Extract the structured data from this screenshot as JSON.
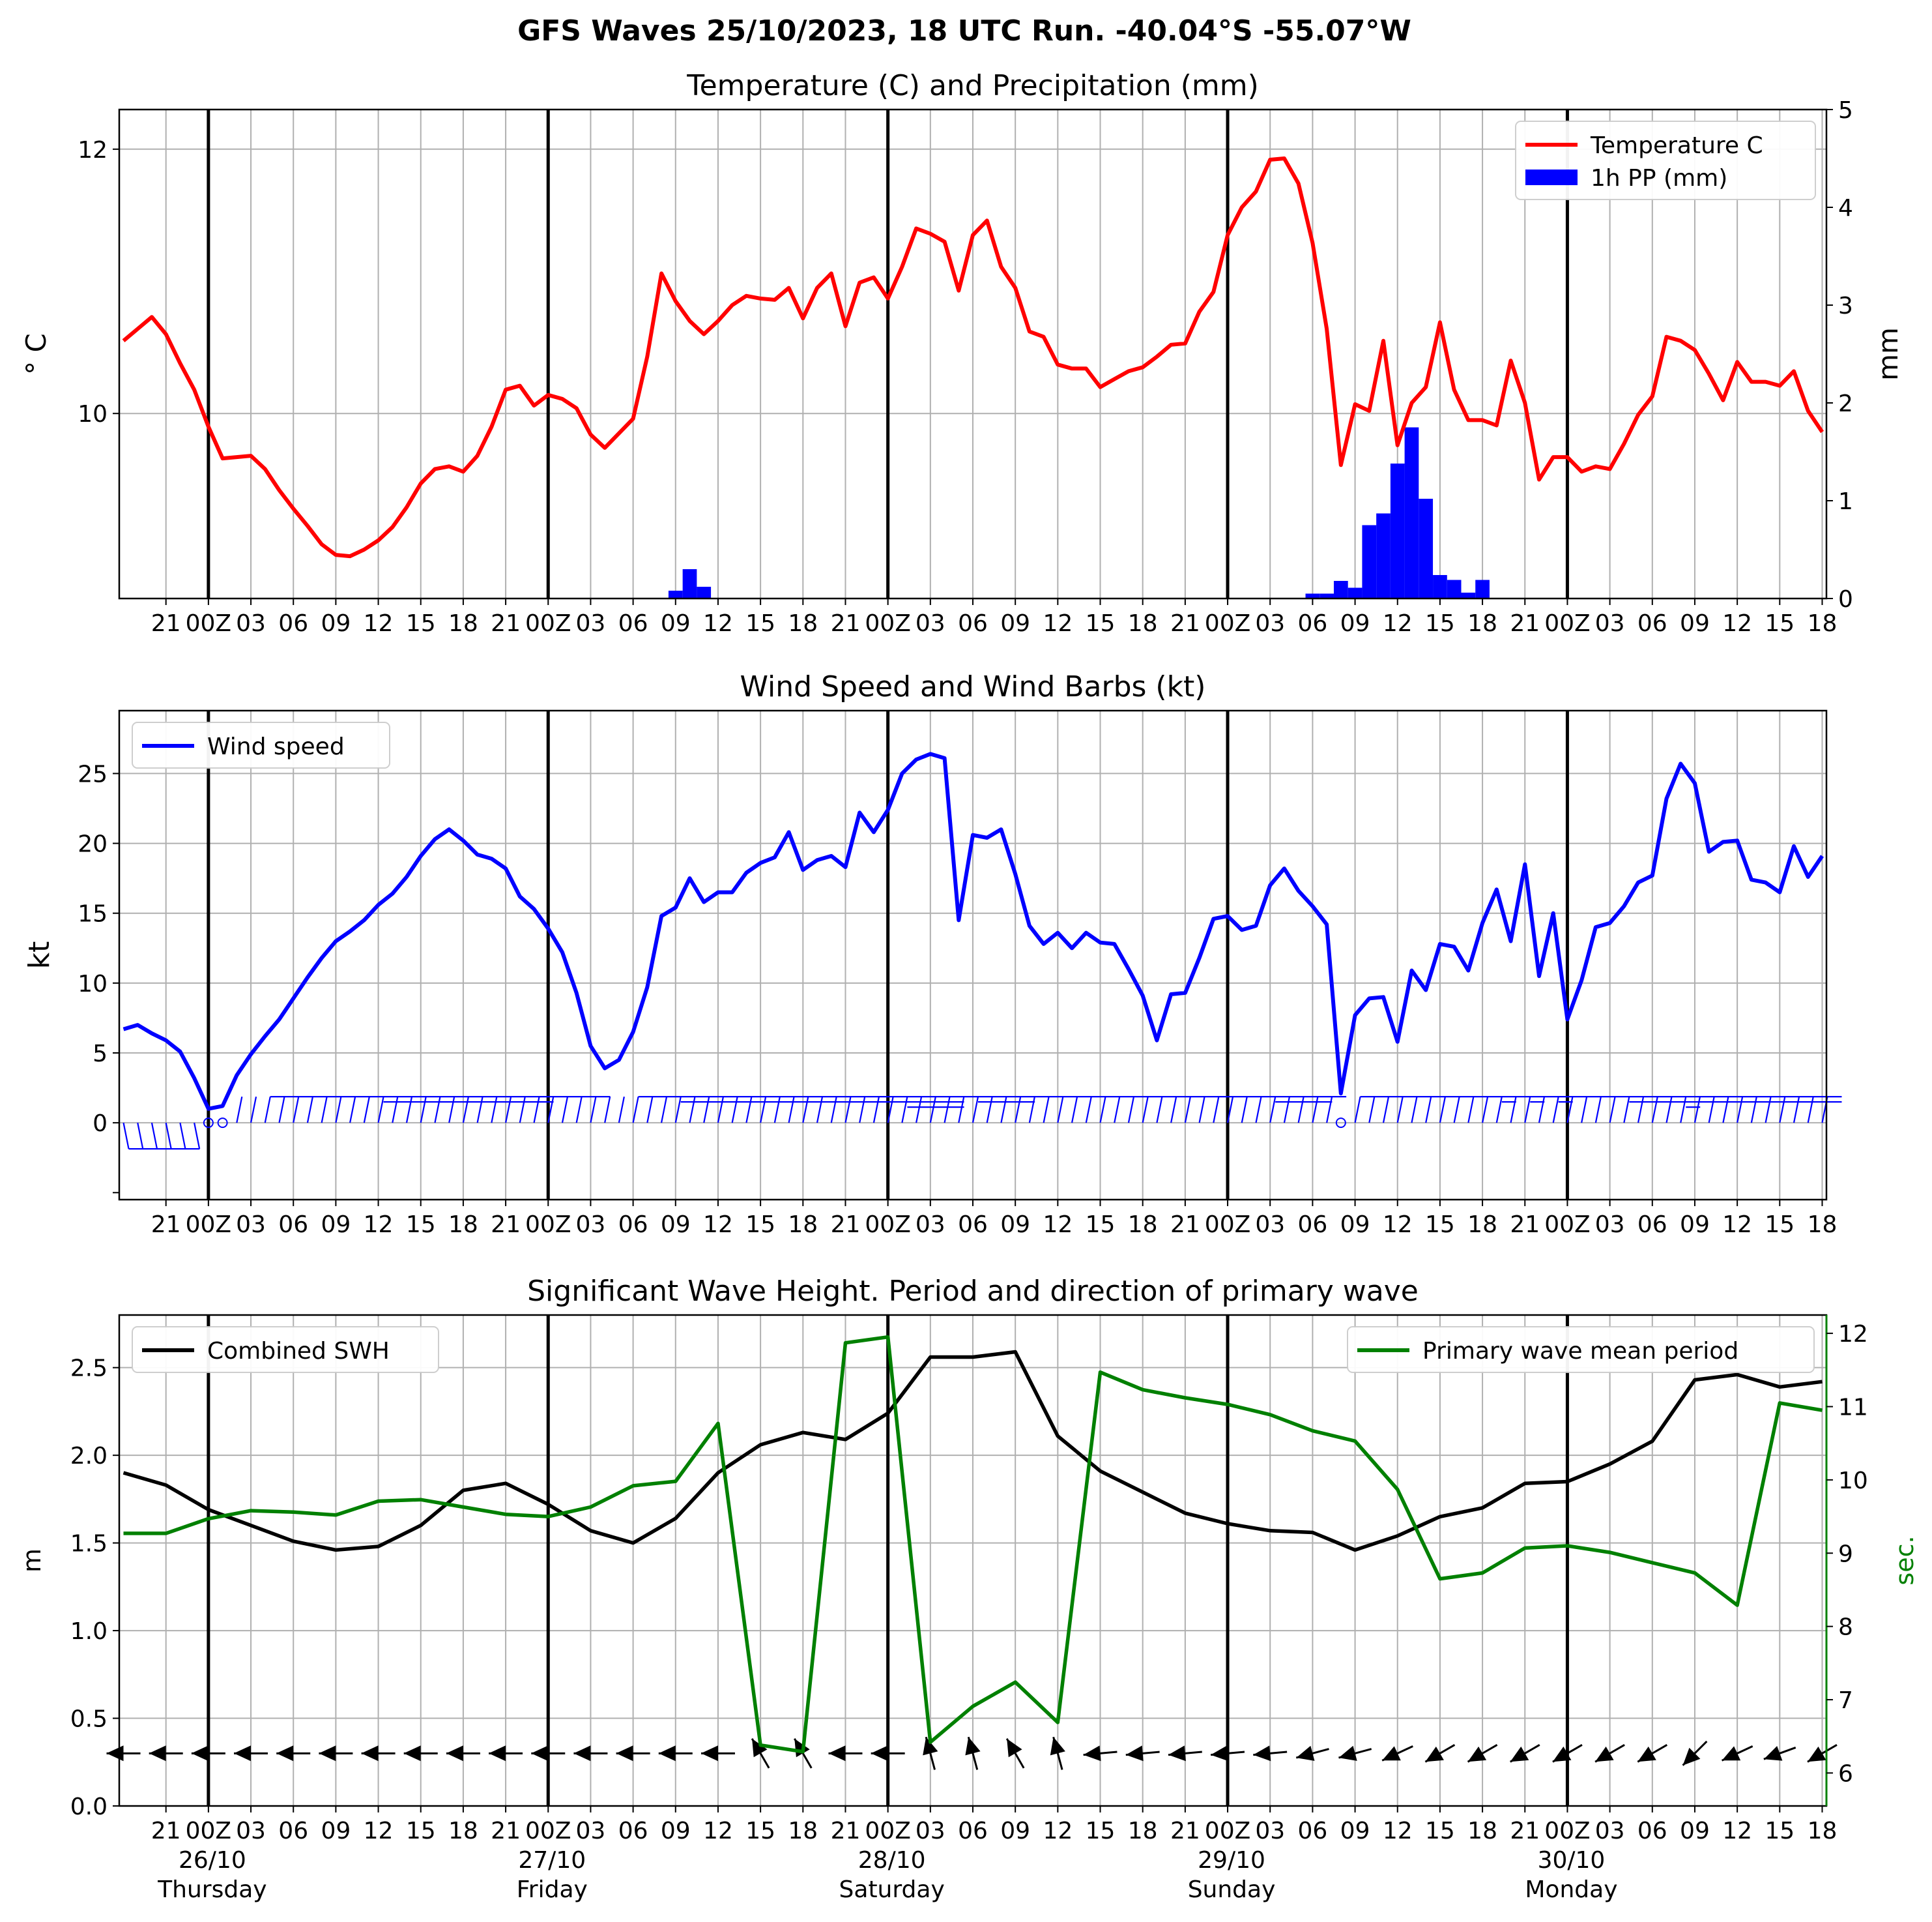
{
  "suptitle": "GFS Waves 25/10/2023, 18 UTC Run. -40.04°S -55.07°W",
  "x_ticks": [
    "21",
    "00Z",
    "03",
    "06",
    "09",
    "12",
    "15",
    "18",
    "21",
    "00Z",
    "03",
    "06",
    "09",
    "12",
    "15",
    "18",
    "21",
    "00Z",
    "03",
    "06",
    "09",
    "12",
    "15",
    "18",
    "21",
    "00Z",
    "03",
    "06",
    "09",
    "12",
    "15",
    "18",
    "21",
    "00Z",
    "03",
    "06",
    "09",
    "12",
    "15",
    "18"
  ],
  "day_labels": [
    {
      "date": "26/10",
      "day": "Thursday"
    },
    {
      "date": "27/10",
      "day": "Friday"
    },
    {
      "date": "28/10",
      "day": "Saturday"
    },
    {
      "date": "29/10",
      "day": "Sunday"
    },
    {
      "date": "30/10",
      "day": "Monday"
    }
  ],
  "colors": {
    "temperature": "#ff0000",
    "precip": "#0000ff",
    "wind": "#0000ff",
    "swh": "#000000",
    "period": "#008000",
    "grid": "#b0b0b0"
  },
  "chart_data": [
    {
      "type": "line",
      "title": "Temperature (C) and Precipitation (mm)",
      "ylabel": "$^\\circ$C",
      "ylabel_display": "° C",
      "y2label": "mm",
      "x_unit": "hours from 25/10 18 UTC",
      "ylim": [
        8.6,
        12.3
      ],
      "y2lim": [
        0,
        5
      ],
      "yticks": [
        10,
        12
      ],
      "y2ticks": [
        0,
        1,
        2,
        3,
        4,
        5
      ],
      "legend_position": "top-right",
      "series": [
        {
          "name": "Temperature C",
          "axis": "left",
          "x": [
            0,
            1,
            2,
            3,
            4,
            5,
            6,
            7,
            8,
            9,
            10,
            11,
            12,
            13,
            14,
            15,
            16,
            17,
            18,
            19,
            20,
            21,
            22,
            23,
            24,
            25,
            26,
            27,
            28,
            29,
            30,
            31,
            32,
            33,
            34,
            35,
            36,
            37,
            38,
            39,
            40,
            41,
            42,
            43,
            44,
            45,
            46,
            47,
            48,
            49,
            50,
            51,
            52,
            53,
            54,
            55,
            56,
            57,
            58,
            59,
            60,
            61,
            62,
            63,
            64,
            65,
            66,
            67,
            68,
            69,
            70,
            71,
            72,
            73,
            74,
            75,
            76,
            77,
            78,
            79,
            80,
            81,
            82,
            83,
            84,
            85,
            86,
            87,
            88,
            89,
            90,
            91,
            92,
            93,
            94,
            95,
            96,
            97,
            98,
            99,
            100,
            101,
            102,
            103,
            104,
            105,
            106,
            107,
            108,
            109,
            110,
            111,
            112,
            113,
            114,
            115,
            116,
            117,
            118,
            119,
            120
          ],
          "values": [
            10.55,
            10.64,
            10.73,
            10.6,
            10.38,
            10.18,
            9.9,
            9.66,
            9.67,
            9.68,
            9.58,
            9.42,
            9.28,
            9.15,
            9.01,
            8.93,
            8.92,
            8.97,
            9.04,
            9.14,
            9.29,
            9.47,
            9.58,
            9.6,
            9.56,
            9.68,
            9.9,
            10.18,
            10.21,
            10.06,
            10.14,
            10.11,
            10.04,
            9.84,
            9.74,
            9.85,
            9.96,
            10.43,
            11.06,
            10.85,
            10.7,
            10.6,
            10.7,
            10.82,
            10.89,
            10.87,
            10.86,
            10.95,
            10.72,
            10.95,
            11.06,
            10.66,
            10.99,
            11.03,
            10.87,
            11.11,
            11.4,
            11.36,
            11.3,
            10.93,
            11.35,
            11.46,
            11.11,
            10.95,
            10.62,
            10.58,
            10.37,
            10.34,
            10.34,
            10.2,
            10.26,
            10.32,
            10.35,
            10.43,
            10.52,
            10.53,
            10.77,
            10.92,
            11.35,
            11.56,
            11.68,
            11.92,
            11.93,
            11.74,
            11.29,
            10.64,
            9.61,
            10.07,
            10.02,
            10.55,
            9.76,
            10.08,
            10.2,
            10.69,
            10.18,
            9.95,
            9.95,
            9.91,
            10.4,
            10.08,
            9.5,
            9.67,
            9.67,
            9.56,
            9.6,
            9.58,
            9.77,
            9.99,
            10.13,
            10.58,
            10.55,
            10.48,
            10.3,
            10.1,
            10.39,
            10.24,
            10.24,
            10.21,
            10.32,
            10.02,
            9.86
          ]
        },
        {
          "name": "1h PP (mm)",
          "axis": "right",
          "kind": "bar",
          "x": [
            39,
            40,
            41,
            84,
            85,
            86,
            87,
            88,
            89,
            90,
            91,
            92,
            93,
            94,
            95,
            96,
            97,
            98
          ],
          "values": [
            0.08,
            0.3,
            0.12,
            0.05,
            0.05,
            0.18,
            0.11,
            0.75,
            0.87,
            1.38,
            1.75,
            1.02,
            0.24,
            0.19,
            0.06,
            0.19,
            0,
            0
          ]
        }
      ],
      "x_spacing_note": "hourly",
      "x_ticks_shared": true
    },
    {
      "type": "line",
      "title": "Wind Speed and Wind Barbs (kt)",
      "ylabel": "kt",
      "ylim": [
        -5.5,
        29.5
      ],
      "yticks": [
        0,
        5,
        10,
        15,
        20,
        25
      ],
      "legend_position": "top-left",
      "series": [
        {
          "name": "Wind speed",
          "x": [
            0,
            1,
            2,
            3,
            4,
            5,
            6,
            7,
            8,
            9,
            10,
            11,
            12,
            13,
            14,
            15,
            16,
            17,
            18,
            19,
            20,
            21,
            22,
            23,
            24,
            25,
            26,
            27,
            28,
            29,
            30,
            31,
            32,
            33,
            34,
            35,
            36,
            37,
            38,
            39,
            40,
            41,
            42,
            43,
            44,
            45,
            46,
            47,
            48,
            49,
            50,
            51,
            52,
            53,
            54,
            55,
            56,
            57,
            58,
            59,
            60,
            61,
            62,
            63,
            64,
            65,
            66,
            67,
            68,
            69,
            70,
            71,
            72,
            73,
            74,
            75,
            76,
            77,
            78,
            79,
            80,
            81,
            82,
            83,
            84,
            85,
            86,
            87,
            88,
            89,
            90,
            91,
            92,
            93,
            94,
            95,
            96,
            97,
            98,
            99,
            100,
            101,
            102,
            103,
            104,
            105,
            106,
            107,
            108,
            109,
            110,
            111,
            112,
            113,
            114,
            115,
            116,
            117,
            118,
            119,
            120
          ],
          "values": [
            6.7,
            7.0,
            6.4,
            5.9,
            5.1,
            3.2,
            1.0,
            1.2,
            3.4,
            4.9,
            6.2,
            7.4,
            8.9,
            10.4,
            11.8,
            13.0,
            13.7,
            14.5,
            15.6,
            16.4,
            17.6,
            19.1,
            20.3,
            21.0,
            20.2,
            19.2,
            18.9,
            18.2,
            16.2,
            15.3,
            13.9,
            12.2,
            9.3,
            5.5,
            3.9,
            4.5,
            6.5,
            9.7,
            14.8,
            15.4,
            17.5,
            15.8,
            16.5,
            16.5,
            17.9,
            18.6,
            19.0,
            20.8,
            18.1,
            18.8,
            19.1,
            18.3,
            22.2,
            20.8,
            22.4,
            25.0,
            26.0,
            26.4,
            26.1,
            14.5,
            20.6,
            20.4,
            21.0,
            17.8,
            14.1,
            12.8,
            13.6,
            12.5,
            13.6,
            12.9,
            12.8,
            11.0,
            9.1,
            5.9,
            9.2,
            9.3,
            11.8,
            14.6,
            14.8,
            13.8,
            14.1,
            17.0,
            18.2,
            16.6,
            15.5,
            14.2,
            2.1,
            7.7,
            8.9,
            9.0,
            5.8,
            10.9,
            9.5,
            12.8,
            12.6,
            10.9,
            14.3,
            16.7,
            13.0,
            18.5,
            10.5,
            15.0,
            7.4,
            10.2,
            14.0,
            14.3,
            15.5,
            17.2,
            17.7,
            23.2,
            25.7,
            24.3,
            19.4,
            20.1,
            20.2,
            17.4,
            17.2,
            16.5,
            19.8,
            17.6,
            19.1
          ]
        }
      ]
    },
    {
      "type": "line",
      "title": "Significant Wave Height. Period and direction of primary wave",
      "ylabel": "m",
      "y2label": "sec.",
      "ylim": [
        0,
        2.8
      ],
      "y2lim": [
        5.55,
        12.25
      ],
      "yticks": [
        0.0,
        0.5,
        1.0,
        1.5,
        2.0,
        2.5
      ],
      "y2ticks": [
        6,
        7,
        8,
        9,
        10,
        11,
        12
      ],
      "legend_positions": [
        "top-left",
        "top-right"
      ],
      "series": [
        {
          "name": "Combined SWH",
          "axis": "left",
          "x": [
            0,
            3,
            6,
            9,
            12,
            15,
            18,
            21,
            24,
            27,
            30,
            33,
            36,
            39,
            42,
            45,
            48,
            51,
            54,
            57,
            60,
            63,
            66,
            69,
            72,
            75,
            78,
            81,
            84,
            87,
            90,
            93,
            96,
            99,
            102,
            105,
            108,
            111,
            114,
            117,
            120
          ],
          "values": [
            1.9,
            1.83,
            1.69,
            1.6,
            1.51,
            1.46,
            1.48,
            1.6,
            1.8,
            1.84,
            1.72,
            1.57,
            1.5,
            1.64,
            1.9,
            2.06,
            2.13,
            2.09,
            2.24,
            2.56,
            2.56,
            2.59,
            2.11,
            1.91,
            1.79,
            1.67,
            1.61,
            1.57,
            1.56,
            1.46,
            1.54,
            1.65,
            1.7,
            1.84,
            1.85,
            1.95,
            2.08,
            2.43,
            2.46,
            2.39,
            2.42
          ]
        },
        {
          "name": "Primary wave mean period",
          "axis": "right",
          "x": [
            0,
            3,
            6,
            9,
            12,
            15,
            18,
            21,
            24,
            27,
            30,
            33,
            36,
            39,
            42,
            45,
            48,
            51,
            54,
            57,
            60,
            63,
            66,
            69,
            72,
            75,
            78,
            81,
            84,
            87,
            90,
            93,
            96,
            99,
            102,
            105,
            108,
            111,
            114,
            117,
            120
          ],
          "values": [
            9.27,
            9.27,
            9.47,
            9.58,
            9.56,
            9.52,
            9.71,
            9.73,
            9.63,
            9.53,
            9.5,
            9.63,
            9.92,
            9.98,
            10.77,
            6.38,
            6.29,
            11.87,
            11.95,
            6.42,
            6.91,
            7.24,
            6.69,
            11.47,
            11.23,
            11.12,
            11.03,
            10.89,
            10.67,
            10.53,
            9.87,
            8.65,
            8.73,
            9.07,
            9.1,
            9.01,
            8.87,
            8.73,
            8.29,
            11.05,
            10.95
          ]
        },
        {
          "name": "",
          "kind": "direction_arrows",
          "x": [
            0,
            3,
            6,
            9,
            12,
            15,
            18,
            21,
            24,
            27,
            30,
            33,
            36,
            39,
            42,
            45,
            48,
            51,
            54,
            57,
            60,
            63,
            66,
            69,
            72,
            75,
            78,
            81,
            84,
            87,
            90,
            93,
            96,
            99,
            102,
            105,
            108,
            111,
            114,
            117,
            120
          ],
          "direction_deg": [
            270,
            270,
            270,
            270,
            270,
            270,
            270,
            270,
            270,
            270,
            270,
            270,
            270,
            270,
            270,
            330,
            330,
            270,
            270,
            345,
            345,
            330,
            345,
            265,
            265,
            265,
            265,
            265,
            255,
            255,
            245,
            240,
            240,
            240,
            240,
            240,
            240,
            225,
            245,
            250,
            240
          ]
        }
      ]
    }
  ]
}
